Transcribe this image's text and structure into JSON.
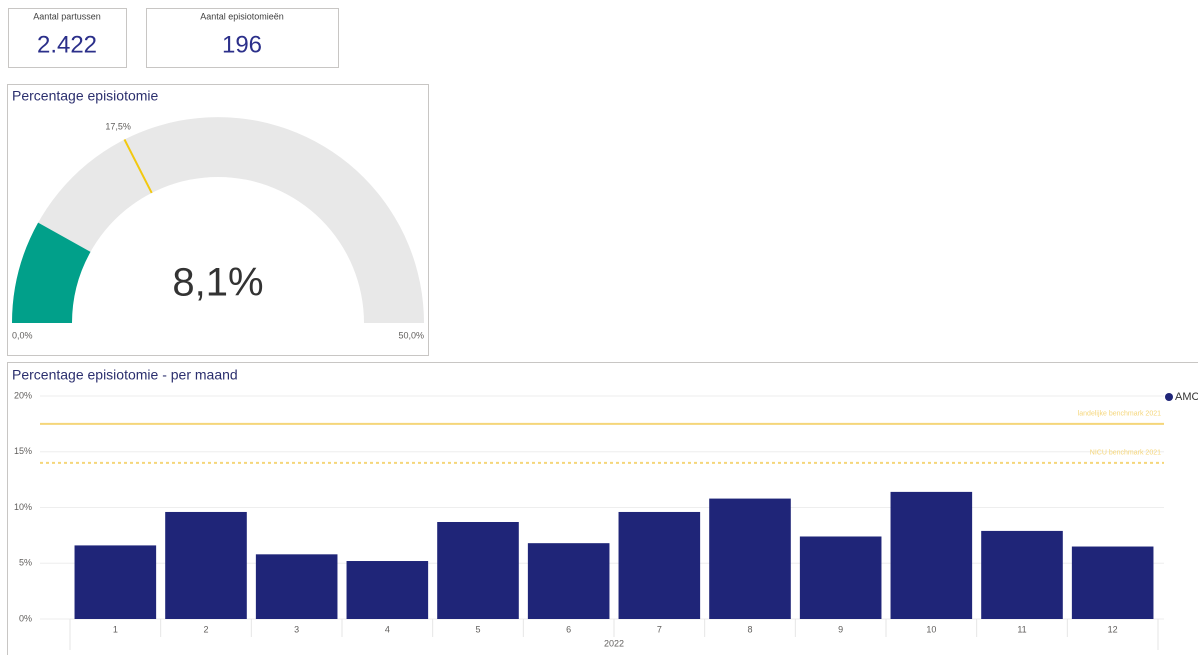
{
  "cards": [
    {
      "label": "Aantal partussen",
      "value": "2.422"
    },
    {
      "label": "Aantal episiotomieën",
      "value": "196"
    }
  ],
  "chart_data": [
    {
      "type": "gauge",
      "title": "Percentage episiotomie",
      "value": 8.1,
      "value_label": "8,1%",
      "color": "#01a08a",
      "track_color": "#e8e8e8",
      "min": {
        "value": 0,
        "label": "0,0%"
      },
      "max": {
        "value": 50,
        "label": "50,0%"
      },
      "target": {
        "value": 17.5,
        "label": "17,5%"
      },
      "target_color": "#f2c80f"
    },
    {
      "type": "bar",
      "title": "Percentage episiotomie - per maand",
      "categories": [
        "1",
        "2",
        "3",
        "4",
        "5",
        "6",
        "7",
        "8",
        "9",
        "10",
        "11",
        "12"
      ],
      "x_group_label": "2022",
      "series": [
        {
          "name": "AMC",
          "color": "#1f2578",
          "values": [
            6.6,
            9.6,
            5.8,
            5.2,
            8.7,
            6.8,
            9.6,
            10.8,
            7.4,
            11.4,
            7.9,
            6.5
          ]
        }
      ],
      "ylim": [
        0,
        20
      ],
      "yticks": [
        {
          "value": 0,
          "label": "0%"
        },
        {
          "value": 5,
          "label": "5%"
        },
        {
          "value": 10,
          "label": "10%"
        },
        {
          "value": 15,
          "label": "15%"
        },
        {
          "value": 20,
          "label": "20%"
        }
      ],
      "grid": true,
      "legend": "top-right",
      "reference_lines": [
        {
          "label": "landelijke benchmark 2021",
          "value": 17.5,
          "style": "solid",
          "color": "#f5d67a"
        },
        {
          "label": "NICU benchmark 2021",
          "value": 14,
          "style": "dashed",
          "color": "#f5d67a"
        }
      ]
    }
  ]
}
